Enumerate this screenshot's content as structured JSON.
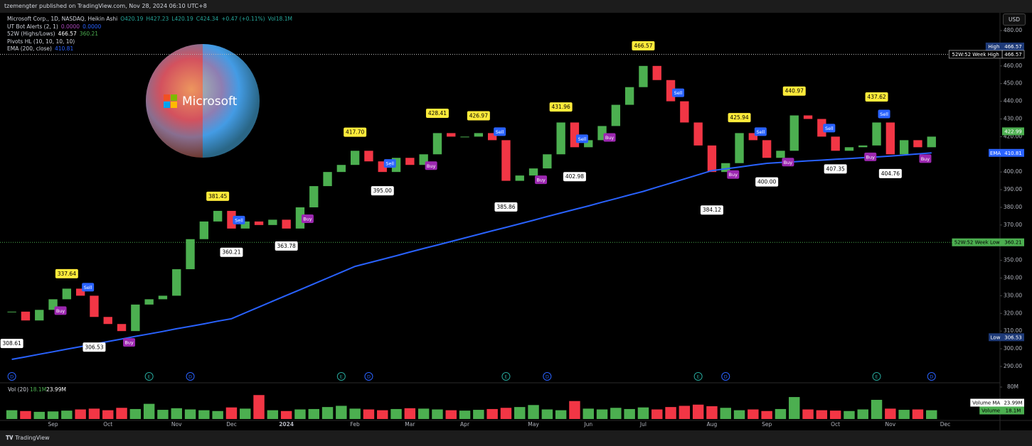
{
  "topbar": "tzemengter published on TradingView.com, Nov 28, 2024 06:10 UTC+8",
  "usd": "USD",
  "footer": "TradingView",
  "logo_text": "Microsoft",
  "chart_data": {
    "type": "candlestick",
    "title": "Microsoft Corp., 1D, NASDAQ, Heikin Ashi",
    "ohlc": [
      "O420.19",
      "H427.23",
      "L420.19",
      "C424.34",
      "+0.47 (+0.11%)",
      "Vol18.1M"
    ],
    "ohlc_color": "#26a69a",
    "indicators": [
      {
        "name": "UT Bot Alerts (2, 1)",
        "values": [
          "0.0000",
          "0.0000"
        ],
        "colors": [
          "#ab47bc",
          "#2962ff"
        ]
      },
      {
        "name": "52W (Highs/Lows)",
        "values": [
          "466.57",
          "360.21"
        ],
        "colors": [
          "#ffffff",
          "#4caf50"
        ]
      },
      {
        "name": "Pivots HL (10, 10, 10, 10)",
        "values": [],
        "colors": []
      },
      {
        "name": "EMA (200, close)",
        "values": [
          "410.81"
        ],
        "colors": [
          "#2962ff"
        ]
      }
    ],
    "categories": [
      null,
      null,
      null,
      "Sep",
      null,
      null,
      null,
      "Oct",
      null,
      null,
      null,
      null,
      "Nov",
      null,
      null,
      null,
      "Dec",
      null,
      null,
      null,
      "2024",
      null,
      null,
      null,
      null,
      "Feb",
      null,
      null,
      null,
      "Mar",
      null,
      null,
      null,
      "Apr",
      null,
      null,
      null,
      null,
      "May",
      null,
      null,
      null,
      "Jun",
      null,
      null,
      null,
      "Jul",
      null,
      null,
      null,
      null,
      "Aug",
      null,
      null,
      null,
      "Sep",
      null,
      null,
      null,
      null,
      "Oct",
      null,
      null,
      null,
      "Nov",
      null,
      null,
      null,
      "Dec"
    ],
    "series": [
      {
        "color_up": "#4caf50",
        "color_down": "#f23645",
        "values": [
          321,
          316,
          322,
          328,
          334,
          330,
          318,
          314,
          310,
          325,
          328,
          330,
          345,
          362,
          372,
          378,
          368,
          372,
          370,
          373,
          368,
          380,
          392,
          400,
          404,
          412,
          406,
          400,
          408,
          404,
          410,
          422,
          420,
          420,
          422,
          418,
          395,
          398,
          402,
          410,
          428,
          414,
          418,
          426,
          438,
          448,
          460,
          452,
          440,
          428,
          415,
          400,
          405,
          422,
          418,
          408,
          412,
          432,
          430,
          420,
          412,
          414,
          415,
          428,
          410,
          418,
          414,
          420,
          null
        ]
      }
    ],
    "ema": {
      "name": "EMA",
      "color": "#2962ff",
      "values": [
        294,
        295.4,
        296.9,
        298.3,
        299.8,
        301.2,
        302.6,
        304.1,
        305.5,
        307,
        308.4,
        309.8,
        311.3,
        312.7,
        314.1,
        315.6,
        317,
        320.3,
        323.6,
        326.9,
        330.2,
        333.4,
        336.7,
        340,
        343.3,
        346.6,
        348.6,
        350.6,
        352.6,
        354.7,
        356.7,
        358.7,
        360.7,
        362.7,
        364.7,
        366.7,
        368.7,
        370.7,
        372.7,
        374.8,
        376.8,
        378.8,
        380.8,
        382.9,
        384.9,
        387,
        389,
        391.4,
        393.7,
        396.1,
        398.4,
        400.8,
        401.8,
        402.8,
        403.9,
        404.9,
        405.4,
        405.8,
        406.3,
        406.7,
        407.2,
        407.6,
        408.1,
        408.5,
        409,
        409.6,
        410.2,
        410.8,
        null
      ]
    },
    "pivots_high": {
      "color": "#ffeb3b",
      "values": [
        null,
        null,
        null,
        null,
        337.64,
        null,
        null,
        null,
        null,
        null,
        null,
        null,
        null,
        null,
        null,
        381.45,
        null,
        null,
        null,
        null,
        null,
        null,
        null,
        null,
        null,
        417.7,
        null,
        null,
        null,
        null,
        null,
        428.41,
        null,
        null,
        426.97,
        null,
        null,
        null,
        null,
        null,
        431.96,
        null,
        null,
        null,
        null,
        null,
        466.57,
        null,
        null,
        null,
        null,
        null,
        null,
        425.94,
        null,
        null,
        null,
        440.97,
        null,
        null,
        null,
        null,
        null,
        437.62,
        null,
        null,
        null,
        null,
        null
      ],
      "value_labels": [
        null,
        null,
        null,
        null,
        "337.64",
        null,
        null,
        null,
        null,
        null,
        null,
        null,
        null,
        null,
        null,
        "381.45",
        null,
        null,
        null,
        null,
        null,
        null,
        null,
        null,
        null,
        "417.70",
        null,
        null,
        null,
        null,
        null,
        "428.41",
        null,
        null,
        "426.97",
        null,
        null,
        null,
        null,
        null,
        "431.96",
        null,
        null,
        null,
        null,
        null,
        "466.57",
        null,
        null,
        null,
        null,
        null,
        null,
        "425.94",
        null,
        null,
        null,
        "440.97",
        null,
        null,
        null,
        null,
        null,
        "437.62",
        null,
        null,
        null,
        null,
        null
      ]
    },
    "pivots_low": {
      "color": "#ffffff",
      "values": [
        308.61,
        null,
        null,
        null,
        null,
        null,
        306.53,
        null,
        null,
        null,
        null,
        null,
        null,
        null,
        null,
        null,
        360.21,
        null,
        null,
        null,
        363.78,
        null,
        null,
        null,
        null,
        null,
        null,
        395,
        null,
        null,
        null,
        null,
        null,
        null,
        null,
        null,
        385.86,
        null,
        null,
        null,
        null,
        402.98,
        null,
        null,
        null,
        null,
        null,
        null,
        null,
        null,
        null,
        384.12,
        null,
        null,
        null,
        400,
        null,
        null,
        null,
        null,
        407.35,
        null,
        null,
        null,
        404.76,
        null,
        null,
        null,
        null
      ],
      "value_labels": [
        "308.61",
        null,
        null,
        null,
        null,
        null,
        "306.53",
        null,
        null,
        null,
        null,
        null,
        null,
        null,
        null,
        null,
        "360.21",
        null,
        null,
        null,
        "363.78",
        null,
        null,
        null,
        null,
        null,
        null,
        "395.00",
        null,
        null,
        null,
        null,
        null,
        null,
        null,
        null,
        "385.86",
        null,
        null,
        null,
        null,
        "402.98",
        null,
        null,
        null,
        null,
        null,
        null,
        null,
        null,
        null,
        "384.12",
        null,
        null,
        null,
        "400.00",
        null,
        null,
        null,
        null,
        "407.35",
        null,
        null,
        null,
        "404.76",
        null,
        null,
        null,
        null
      ]
    },
    "signals": [
      null,
      null,
      null,
      "Buy",
      null,
      "Sell",
      null,
      null,
      "Buy",
      null,
      null,
      null,
      null,
      null,
      null,
      null,
      "Sell",
      null,
      null,
      null,
      null,
      "Buy",
      null,
      null,
      null,
      null,
      null,
      "Sell",
      null,
      null,
      "Buy",
      null,
      null,
      null,
      null,
      "Sell",
      null,
      null,
      "Buy",
      null,
      null,
      "Sell",
      null,
      "Buy",
      null,
      null,
      null,
      null,
      "Sell",
      null,
      null,
      null,
      "Buy",
      null,
      "Sell",
      null,
      "Buy",
      null,
      null,
      "Sell",
      null,
      null,
      "Buy",
      "Sell",
      null,
      null,
      "Buy",
      null,
      null
    ],
    "signal_colors": {
      "Buy": "#9c27b0",
      "Sell": "#2962ff"
    },
    "events": [
      "D",
      null,
      null,
      null,
      null,
      null,
      null,
      null,
      null,
      null,
      "E",
      null,
      null,
      "D",
      null,
      null,
      null,
      null,
      null,
      null,
      null,
      null,
      null,
      null,
      "E",
      null,
      "D",
      null,
      null,
      null,
      null,
      null,
      null,
      null,
      null,
      null,
      "E",
      null,
      null,
      "D",
      null,
      null,
      null,
      null,
      null,
      null,
      null,
      null,
      null,
      null,
      "E",
      null,
      "D",
      null,
      null,
      null,
      null,
      null,
      null,
      null,
      null,
      null,
      null,
      "E",
      null,
      null,
      null,
      "D",
      null
    ],
    "event_colors": {
      "D": "#2962ff",
      "E": "#26a69a"
    },
    "ylim": [
      285,
      485
    ],
    "yticks": [
      {
        "value": 290,
        "label": "290.00"
      },
      {
        "value": 300,
        "label": "300.00"
      },
      {
        "value": 310,
        "label": "310.00"
      },
      {
        "value": 320,
        "label": "320.00"
      },
      {
        "value": 330,
        "label": "330.00"
      },
      {
        "value": 340,
        "label": "340.00"
      },
      {
        "value": 350,
        "label": "350.00"
      },
      {
        "value": 360,
        "label": "360.00"
      },
      {
        "value": 370,
        "label": "370.00"
      },
      {
        "value": 380,
        "label": "380.00"
      },
      {
        "value": 390,
        "label": "390.00"
      },
      {
        "value": 400,
        "label": "400.00"
      },
      {
        "value": 410,
        "label": "410.00"
      },
      {
        "value": 420,
        "label": "420.00"
      },
      {
        "value": 430,
        "label": "430.00"
      },
      {
        "value": 440,
        "label": "440.00"
      },
      {
        "value": 450,
        "label": "450.00"
      },
      {
        "value": 460,
        "label": "460.00"
      },
      {
        "value": 470,
        "label": "470.00"
      },
      {
        "value": 480,
        "label": "480.00"
      }
    ],
    "grid": false,
    "tags": [
      {
        "name": "High",
        "value": 466.57,
        "color": "#1e3a78",
        "text_color": "#ffffff"
      },
      {
        "name": "52W:52 Week High",
        "value": 466.57,
        "color": "#000000",
        "text_color": "#ffffff"
      },
      {
        "name": "EMA",
        "value": 410.81,
        "color": "#2962ff",
        "text_color": "#ffffff"
      },
      {
        "value": 422.99,
        "color": "#4caf50",
        "text_color": "#ffffff"
      },
      {
        "name": "52W:52 Week Low",
        "value": 360.21,
        "color": "#4caf50",
        "text_color": "#000000"
      },
      {
        "name": "Low",
        "value": 306.53,
        "color": "#1e3a78",
        "text_color": "#ffffff"
      }
    ],
    "volume": {
      "legend": [
        "Vol (20)",
        "18.1M",
        "23.99M"
      ],
      "values": [
        22,
        20,
        18,
        19,
        21,
        24,
        26,
        22,
        28,
        25,
        38,
        23,
        27,
        24,
        22,
        20,
        29,
        26,
        60,
        22,
        20,
        24,
        25,
        30,
        33,
        26,
        24,
        22,
        25,
        27,
        26,
        24,
        22,
        21,
        23,
        25,
        28,
        30,
        35,
        24,
        22,
        45,
        26,
        24,
        28,
        25,
        29,
        24,
        30,
        33,
        36,
        32,
        28,
        22,
        24,
        20,
        25,
        55,
        24,
        22,
        21,
        20,
        24,
        48,
        26,
        23,
        24,
        22,
        null
      ],
      "ylim": [
        0,
        80
      ],
      "yticks": [
        {
          "value": 80,
          "label": "80M"
        }
      ],
      "tags": [
        {
          "name": "Volume MA",
          "label": "23.99M",
          "color": "#ffffff",
          "text_color": "#000000"
        },
        {
          "name": "Volume",
          "label": "18.1M",
          "color": "#4caf50",
          "text_color": "#000000"
        }
      ]
    }
  }
}
